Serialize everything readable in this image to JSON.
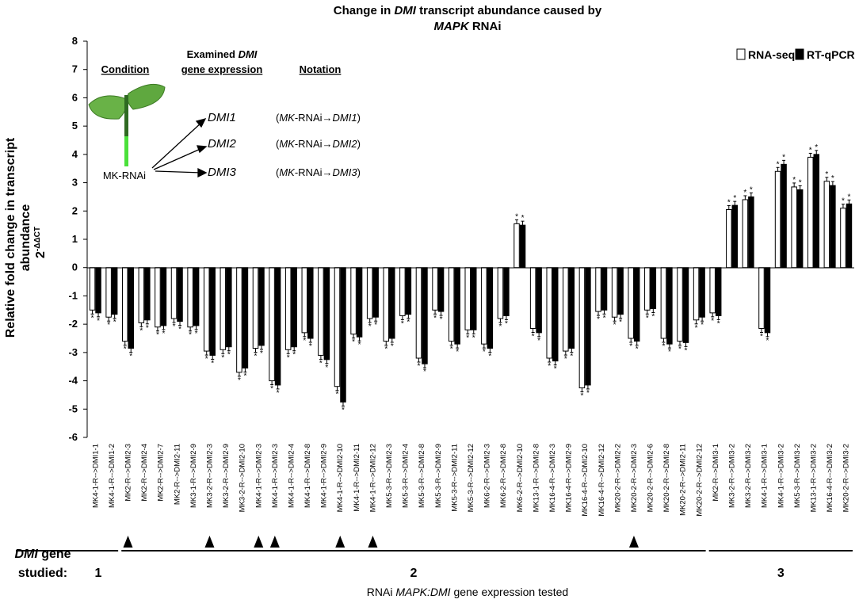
{
  "chart_data": {
    "type": "bar",
    "title_part1": "Change in ",
    "title_italic1": "DMI",
    "title_part2": " transcript abundance caused by",
    "title_italic2": "MAPK",
    "title_part3": " RNAi",
    "ylabel_line1": "Relative fold change in transcript",
    "ylabel_line2": "abundance",
    "ylabel_line3": "2",
    "ylabel_sup": "-ΔΔCT",
    "xlabel_part1": "RNAi ",
    "xlabel_italic": "MAPK:DMI",
    "xlabel_part2": " gene expression tested",
    "ylim": [
      -6,
      8
    ],
    "yticks": [
      -6,
      -5,
      -4,
      -3,
      -2,
      -1,
      0,
      1,
      2,
      3,
      4,
      5,
      6,
      7,
      8
    ],
    "legend": {
      "position": "top-right",
      "items": [
        "RNA-seq",
        "RT-qPCR"
      ]
    },
    "series": [
      {
        "name": "RNA-seq",
        "color": "#ffffff",
        "values": [
          -1.5,
          -1.75,
          -2.6,
          -1.95,
          -2.1,
          -1.8,
          -2.1,
          -2.95,
          -2.9,
          -3.7,
          -2.85,
          -4.0,
          -2.9,
          -2.3,
          -3.1,
          -4.2,
          -2.35,
          -1.8,
          -2.6,
          -1.7,
          -3.2,
          -1.5,
          -2.6,
          -2.2,
          -2.7,
          -1.8,
          1.55,
          -2.15,
          -3.2,
          -2.95,
          -4.25,
          -1.55,
          -1.75,
          -2.5,
          -1.5,
          -2.5,
          -2.6,
          -1.85,
          -1.6,
          2.05,
          2.4,
          -2.15,
          3.4,
          2.85,
          3.9,
          3.05,
          2.1
        ]
      },
      {
        "name": "RT-qPCR",
        "color": "#000000",
        "values": [
          -1.6,
          -1.65,
          -2.85,
          -1.85,
          -2.05,
          -1.9,
          -2.05,
          -3.1,
          -2.8,
          -3.55,
          -2.75,
          -4.15,
          -2.8,
          -2.5,
          -3.25,
          -4.75,
          -2.45,
          -1.75,
          -2.5,
          -1.65,
          -3.4,
          -1.55,
          -2.7,
          -2.2,
          -2.85,
          -1.7,
          1.5,
          -2.3,
          -3.3,
          -2.85,
          -4.15,
          -1.5,
          -1.65,
          -2.6,
          -1.45,
          -2.7,
          -2.65,
          -1.75,
          -1.7,
          2.2,
          2.5,
          -2.3,
          3.65,
          2.75,
          4.0,
          2.9,
          2.25
        ]
      }
    ],
    "categories": [
      "MK4-1-R-->DMI1-1",
      "MK4-1-R-->DMI1-2",
      "MK2-R-->DMI2-3",
      "MK2-R-->DMI2-4",
      "MK2-R-->DMI2-7",
      "MK2-R-->DMI2-11",
      "MK3-1-R-->DMI2-9",
      "MK3-2-R-->DMI2-3",
      "MK3-2-R-->DMI2-9",
      "MK3-2-R-->DMI2-10",
      "MK4-1-R-->DMI2-3",
      "MK4-1-R-->DMI2-3",
      "MK4-1-R-->DMI2-4",
      "MK4-1-R-->DMI2-8",
      "MK4-1-R-->DMI2-9",
      "MK4-1-R-->DMI2-10",
      "MK4-1-R-->DMI2-11",
      "MK4-1-R-->DMI2-12",
      "MK5-3-R-->DMI2-3",
      "MK5-3-R-->DMI2-4",
      "MK5-3-R-->DMI2-8",
      "MK5-3-R-->DMI2-9",
      "MK5-3-R-->DMI2-11",
      "MK5-3-R-->DMI2-12",
      "MK6-2-R-->DMI2-3",
      "MK6-2-R-->DMI2-8",
      "MK6-2-R-->DMI2-10",
      "MK13-1-R-->DMI2-8",
      "MK16-4-R-->DMI2-3",
      "MK16-4-R-->DMI2-9",
      "MK16-4-R-->DMI2-10",
      "MK16-4-R-->DMI2-12",
      "MK20-2-R-->DMI2-2",
      "MK20-2-R-->DMI2-3",
      "MK20-2-R-->DMI2-6",
      "MK20-2-R-->DMI2-8",
      "MK20-2-R-->DMI2-11",
      "MK20-2-R-->DMI2-12",
      "MK2-R-->DMI3-1",
      "MK3-2-R-->DMI3-2",
      "MK3-2-R-->DMI3-2",
      "MK4-1-R-->DMI3-1",
      "MK4-1-R-->DMI3-2",
      "MK5-3-R-->DMI3-2",
      "MK13-1-R-->DMI3-2",
      "MK16-4-R-->DMI3-2",
      "MK20-2-R-->DMI3-2"
    ],
    "triangle_markers_at_indices": [
      2,
      7,
      10,
      11,
      15,
      17,
      33
    ],
    "groups": [
      {
        "label": "1",
        "start": 0,
        "end": 1
      },
      {
        "label": "2",
        "start": 2,
        "end": 37
      },
      {
        "label": "3",
        "start": 38,
        "end": 46
      }
    ],
    "group_caption_line1_italic": "DMI",
    "group_caption_line1_rest": " gene",
    "group_caption_line2": "studied:",
    "inset": {
      "col_condition": "Condition",
      "col_examined_line1_pre": "Examined ",
      "col_examined_line1_italic": "DMI",
      "col_examined_line2": "gene expression",
      "col_notation": "Notation",
      "source_label": "MK-RNAi",
      "targets": [
        "DMI1",
        "DMI2",
        "DMI3"
      ],
      "notation_pre": "(",
      "notation_mk": "MK",
      "notation_mid": "-RNAi",
      "notation_arrow": "→",
      "notation_post": ")"
    }
  }
}
